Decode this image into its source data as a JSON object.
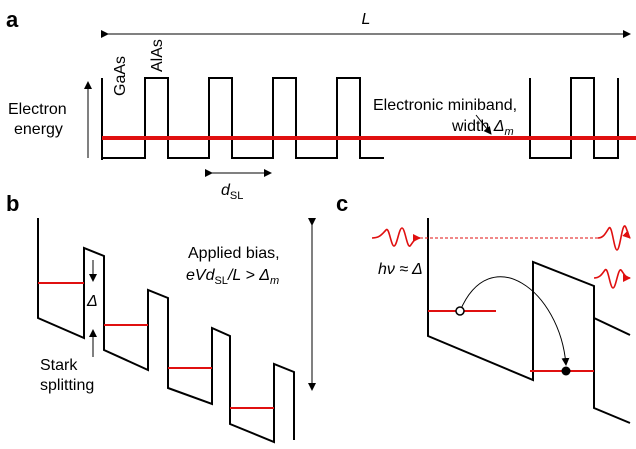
{
  "panel_a": {
    "letter": "a",
    "length_label": "L",
    "layer1": "GaAs",
    "layer2": "AlAs",
    "axis_label_line1": "Electron",
    "axis_label_line2": "energy",
    "miniband_line1": "Electronic miniband,",
    "miniband_width_prefix": "width ",
    "miniband_symbol": "Δ",
    "miniband_sub": "m",
    "period_symbol": "d",
    "period_sub": "SL"
  },
  "panel_b": {
    "letter": "b",
    "splitting_symbol": "Δ",
    "stark_line1": "Stark",
    "stark_line2": "splitting",
    "bias_line1": "Applied bias,",
    "bias_expr_a": "eVd",
    "bias_expr_sub": "SL",
    "bias_expr_b": "/L > ",
    "bias_expr_symbol": "Δ",
    "bias_expr_sub2": "m"
  },
  "panel_c": {
    "letter": "c",
    "photon_label": "hν ≈ Δ"
  },
  "colors": {
    "line": "#000000",
    "energy_level": "#e01010",
    "photon": "#e01010"
  }
}
